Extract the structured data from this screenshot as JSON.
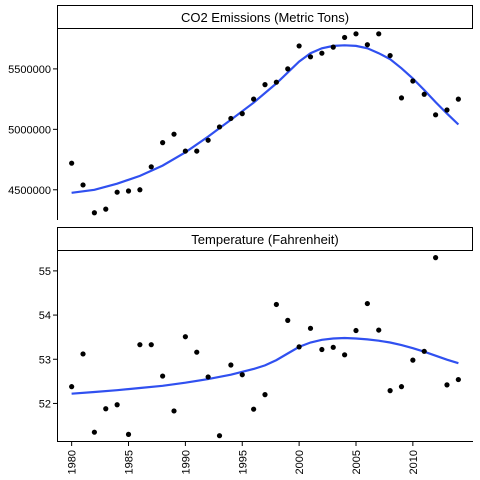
{
  "chart_data": [
    {
      "type": "scatter",
      "title": "CO2 Emissions (Metric Tons)",
      "xlabel": "",
      "ylabel": "",
      "xlim": [
        1978.8,
        2015.2
      ],
      "ylim": [
        4250000,
        5830000
      ],
      "yticks": [
        4500000,
        5000000,
        5500000
      ],
      "ytick_labels": [
        "4500000",
        "5000000",
        "5500000"
      ],
      "grid": false,
      "smooth_line_color": "#3050f0",
      "points": [
        [
          1980,
          4720000
        ],
        [
          1981,
          4540000
        ],
        [
          1982,
          4310000
        ],
        [
          1983,
          4340000
        ],
        [
          1984,
          4480000
        ],
        [
          1985,
          4490000
        ],
        [
          1986,
          4500000
        ],
        [
          1987,
          4690000
        ],
        [
          1988,
          4890000
        ],
        [
          1989,
          4960000
        ],
        [
          1990,
          4820000
        ],
        [
          1991,
          4820000
        ],
        [
          1992,
          4910000
        ],
        [
          1993,
          5020000
        ],
        [
          1994,
          5090000
        ],
        [
          1995,
          5130000
        ],
        [
          1996,
          5250000
        ],
        [
          1997,
          5370000
        ],
        [
          1998,
          5390000
        ],
        [
          1999,
          5500000
        ],
        [
          2000,
          5690000
        ],
        [
          2001,
          5600000
        ],
        [
          2002,
          5630000
        ],
        [
          2003,
          5680000
        ],
        [
          2004,
          5760000
        ],
        [
          2005,
          5790000
        ],
        [
          2006,
          5700000
        ],
        [
          2007,
          5790000
        ],
        [
          2008,
          5610000
        ],
        [
          2009,
          5260000
        ],
        [
          2010,
          5400000
        ],
        [
          2011,
          5290000
        ],
        [
          2012,
          5120000
        ],
        [
          2013,
          5160000
        ],
        [
          2014,
          5250000
        ]
      ],
      "smooth": [
        [
          1980,
          4475000
        ],
        [
          1982,
          4500000
        ],
        [
          1984,
          4550000
        ],
        [
          1986,
          4615000
        ],
        [
          1988,
          4700000
        ],
        [
          1990,
          4810000
        ],
        [
          1992,
          4940000
        ],
        [
          1994,
          5080000
        ],
        [
          1996,
          5220000
        ],
        [
          1998,
          5380000
        ],
        [
          2000,
          5560000
        ],
        [
          2001,
          5630000
        ],
        [
          2002,
          5670000
        ],
        [
          2003,
          5690000
        ],
        [
          2004,
          5695000
        ],
        [
          2005,
          5690000
        ],
        [
          2006,
          5670000
        ],
        [
          2007,
          5630000
        ],
        [
          2008,
          5580000
        ],
        [
          2009,
          5505000
        ],
        [
          2010,
          5420000
        ],
        [
          2011,
          5325000
        ],
        [
          2012,
          5225000
        ],
        [
          2013,
          5130000
        ],
        [
          2014,
          5040000
        ]
      ]
    },
    {
      "type": "scatter",
      "title": "Temperature (Fahrenheit)",
      "xlabel": "",
      "ylabel": "",
      "xlim": [
        1978.8,
        2015.2
      ],
      "ylim": [
        51.15,
        55.45
      ],
      "yticks": [
        52,
        53,
        54,
        55
      ],
      "ytick_labels": [
        "52",
        "53",
        "54",
        "55"
      ],
      "xticks": [
        1980,
        1985,
        1990,
        1995,
        2000,
        2005,
        2010
      ],
      "xtick_labels": [
        "1980",
        "1985",
        "1990",
        "1995",
        "2000",
        "2005",
        "2010"
      ],
      "grid": false,
      "smooth_line_color": "#3050f0",
      "points": [
        [
          1980,
          52.38
        ],
        [
          1981,
          53.12
        ],
        [
          1982,
          51.35
        ],
        [
          1983,
          51.88
        ],
        [
          1984,
          51.97
        ],
        [
          1985,
          51.3
        ],
        [
          1986,
          53.33
        ],
        [
          1987,
          53.33
        ],
        [
          1988,
          52.62
        ],
        [
          1989,
          51.83
        ],
        [
          1990,
          53.51
        ],
        [
          1991,
          53.16
        ],
        [
          1992,
          52.6
        ],
        [
          1993,
          51.27
        ],
        [
          1994,
          52.87
        ],
        [
          1995,
          52.65
        ],
        [
          1996,
          51.87
        ],
        [
          1997,
          52.2
        ],
        [
          1998,
          54.24
        ],
        [
          1999,
          53.88
        ],
        [
          2000,
          53.28
        ],
        [
          2001,
          53.7
        ],
        [
          2002,
          53.22
        ],
        [
          2003,
          53.27
        ],
        [
          2004,
          53.1
        ],
        [
          2005,
          53.65
        ],
        [
          2006,
          54.26
        ],
        [
          2007,
          53.66
        ],
        [
          2008,
          52.29
        ],
        [
          2009,
          52.38
        ],
        [
          2010,
          52.98
        ],
        [
          2011,
          53.18
        ],
        [
          2012,
          55.3
        ],
        [
          2013,
          52.42
        ],
        [
          2014,
          52.54
        ]
      ],
      "smooth": [
        [
          1980,
          52.22
        ],
        [
          1982,
          52.26
        ],
        [
          1984,
          52.3
        ],
        [
          1986,
          52.35
        ],
        [
          1988,
          52.4
        ],
        [
          1990,
          52.47
        ],
        [
          1992,
          52.55
        ],
        [
          1994,
          52.65
        ],
        [
          1996,
          52.78
        ],
        [
          1997,
          52.86
        ],
        [
          1998,
          52.98
        ],
        [
          1999,
          53.13
        ],
        [
          2000,
          53.28
        ],
        [
          2001,
          53.38
        ],
        [
          2002,
          53.44
        ],
        [
          2003,
          53.47
        ],
        [
          2004,
          53.48
        ],
        [
          2005,
          53.47
        ],
        [
          2006,
          53.45
        ],
        [
          2007,
          53.42
        ],
        [
          2008,
          53.38
        ],
        [
          2009,
          53.32
        ],
        [
          2010,
          53.25
        ],
        [
          2011,
          53.17
        ],
        [
          2012,
          53.08
        ],
        [
          2013,
          52.99
        ],
        [
          2014,
          52.91
        ]
      ]
    }
  ]
}
